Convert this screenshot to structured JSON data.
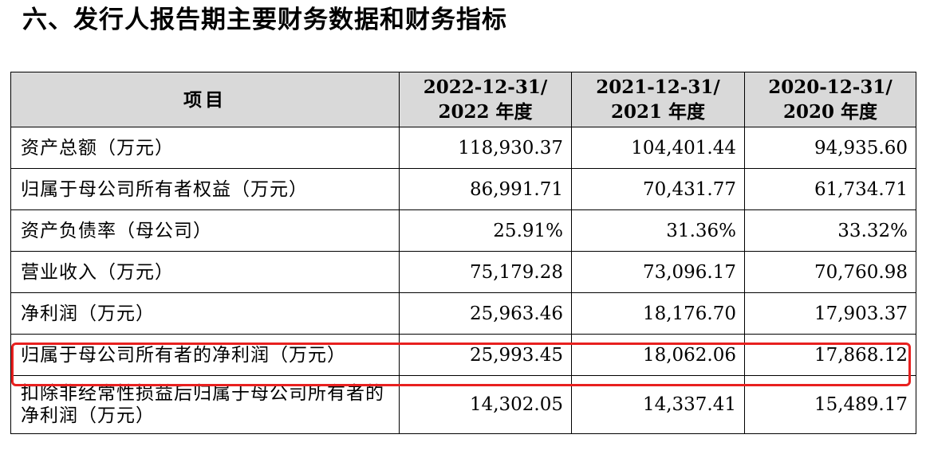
{
  "heading": "六、发行人报告期主要财务数据和财务指标",
  "table": {
    "header": {
      "item": "项目",
      "years": [
        {
          "line1": "2022-12-31/",
          "line2": "2022 年度"
        },
        {
          "line1": "2021-12-31/",
          "line2": "2021 年度"
        },
        {
          "line1": "2020-12-31/",
          "line2": "2020 年度"
        }
      ]
    },
    "rows": [
      {
        "label": "资产总额（万元）",
        "values": [
          "118,930.37",
          "104,401.44",
          "94,935.60"
        ]
      },
      {
        "label": "归属于母公司所有者权益（万元）",
        "values": [
          "86,991.71",
          "70,431.77",
          "61,734.71"
        ]
      },
      {
        "label": "资产负债率（母公司）",
        "values": [
          "25.91%",
          "31.36%",
          "33.32%"
        ]
      },
      {
        "label": "营业收入（万元）",
        "values": [
          "75,179.28",
          "73,096.17",
          "70,760.98"
        ]
      },
      {
        "label": "净利润（万元）",
        "values": [
          "25,963.46",
          "18,176.70",
          "17,903.37"
        ]
      },
      {
        "label": "归属于母公司所有者的净利润（万元）",
        "values": [
          "25,993.45",
          "18,062.06",
          "17,868.12"
        ]
      },
      {
        "label": "扣除非经常性损益后归属于母公司所有者的净利润（万元）",
        "values": [
          "14,302.05",
          "14,337.41",
          "15,489.17"
        ]
      }
    ]
  },
  "highlight": {
    "color": "#e8201f"
  },
  "colors": {
    "header_bg": "#d9d9d9",
    "border": "#000000"
  }
}
